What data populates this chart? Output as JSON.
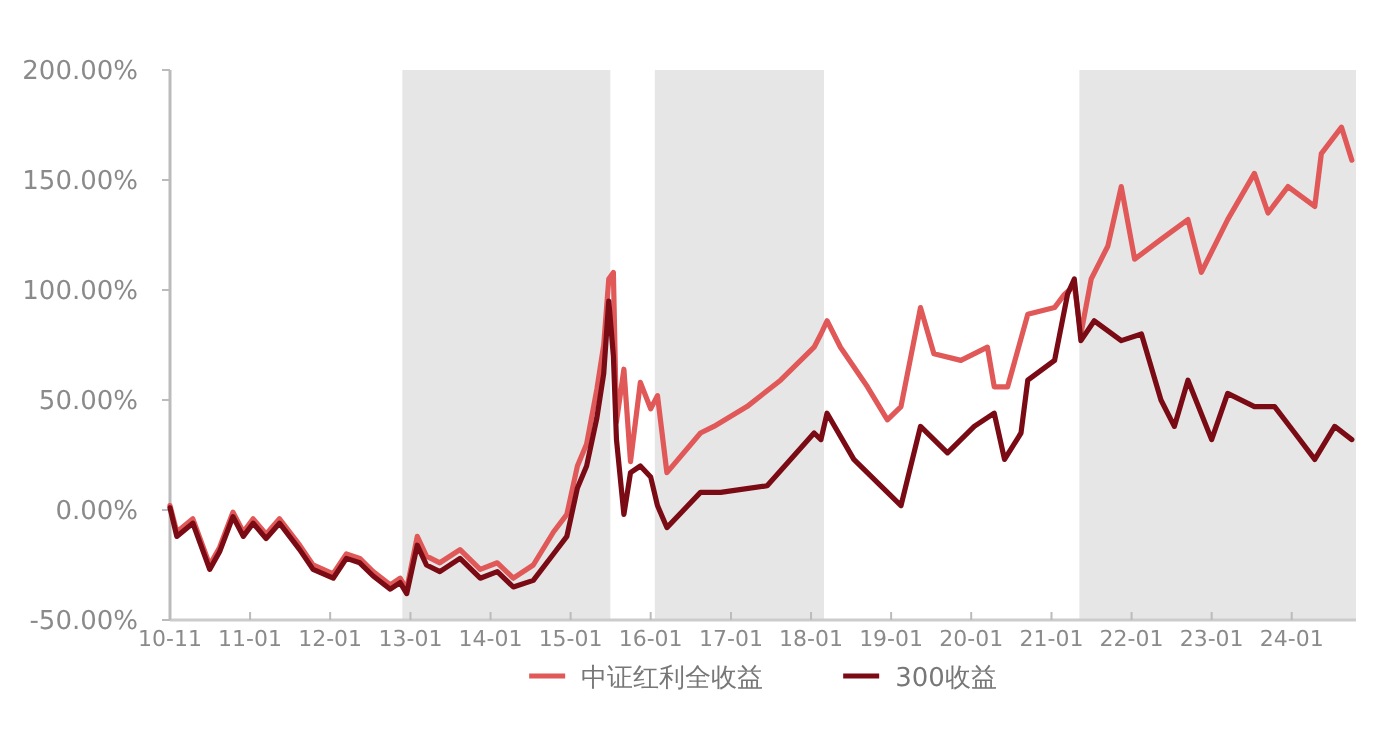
{
  "chart_data": {
    "type": "line",
    "legend": "bottom",
    "grid": false,
    "marker": "none",
    "line_style": "solid",
    "xlim": [
      "2010-01-01",
      "2024-10-20"
    ],
    "ylim": [
      -50,
      200
    ],
    "xticks": [
      {
        "value": "2010-01-01",
        "label": "10-11"
      },
      {
        "value": "2011-01-01",
        "label": "11-01"
      },
      {
        "value": "2012-01-01",
        "label": "12-01"
      },
      {
        "value": "2013-01-01",
        "label": "13-01"
      },
      {
        "value": "2014-01-01",
        "label": "14-01"
      },
      {
        "value": "2015-01-01",
        "label": "15-01"
      },
      {
        "value": "2016-01-01",
        "label": "16-01"
      },
      {
        "value": "2017-01-01",
        "label": "17-01"
      },
      {
        "value": "2018-01-01",
        "label": "18-01"
      },
      {
        "value": "2019-01-01",
        "label": "19-01"
      },
      {
        "value": "2020-01-01",
        "label": "20-01"
      },
      {
        "value": "2021-01-01",
        "label": "21-01"
      },
      {
        "value": "2022-01-01",
        "label": "22-01"
      },
      {
        "value": "2023-01-01",
        "label": "23-01"
      },
      {
        "value": "2024-01-01",
        "label": "24-01"
      }
    ],
    "yticks": [
      {
        "value": -50,
        "label": "-50.00%"
      },
      {
        "value": 0,
        "label": "0.00%"
      },
      {
        "value": 50,
        "label": "50.00%"
      },
      {
        "value": 100,
        "label": "100.00%"
      },
      {
        "value": 150,
        "label": "150.00%"
      },
      {
        "value": 200,
        "label": "200.00%"
      }
    ],
    "bands": [
      {
        "axis": "x",
        "from": "2012-11-25",
        "to": "2015-07-01",
        "color": "#e6e6e6"
      },
      {
        "axis": "x",
        "from": "2016-01-20",
        "to": "2018-03-01",
        "color": "#e6e6e6"
      },
      {
        "axis": "x",
        "from": "2021-05-08",
        "to": "2024-10-20",
        "color": "#e6e6e6"
      }
    ],
    "series": [
      {
        "name": "中证红利全收益",
        "color": "#e05858",
        "x": [
          "2010-01-01",
          "2010-02-01",
          "2010-04-15",
          "2010-07-01",
          "2010-08-15",
          "2010-10-15",
          "2010-12-01",
          "2011-01-15",
          "2011-03-15",
          "2011-05-15",
          "2011-08-15",
          "2011-10-15",
          "2012-01-15",
          "2012-03-15",
          "2012-05-15",
          "2012-07-15",
          "2012-10-01",
          "2012-11-15",
          "2012-12-15",
          "2013-02-01",
          "2013-03-15",
          "2013-05-15",
          "2013-08-15",
          "2013-11-15",
          "2014-02-01",
          "2014-04-15",
          "2014-07-15",
          "2014-10-15",
          "2014-12-15",
          "2015-02-01",
          "2015-03-15",
          "2015-05-01",
          "2015-06-01",
          "2015-06-24",
          "2015-07-15",
          "2015-07-29",
          "2015-09-01",
          "2015-10-01",
          "2015-11-15",
          "2016-01-01",
          "2016-02-01",
          "2016-03-15",
          "2016-08-15",
          "2016-10-15",
          "2017-03-15",
          "2017-08-15",
          "2018-01-15",
          "2018-02-15",
          "2018-03-15",
          "2018-05-15",
          "2018-09-15",
          "2018-12-15",
          "2019-02-15",
          "2019-05-15",
          "2019-07-15",
          "2019-11-15",
          "2020-03-15",
          "2020-04-15",
          "2020-06-15",
          "2020-09-15",
          "2021-01-15",
          "2021-03-01",
          "2021-04-15",
          "2021-05-15",
          "2021-07-01",
          "2021-09-15",
          "2021-11-15",
          "2022-01-15",
          "2022-05-15",
          "2022-09-15",
          "2022-11-15",
          "2023-03-15",
          "2023-07-15",
          "2023-09-15",
          "2023-12-15",
          "2024-04-15",
          "2024-05-15",
          "2024-08-15",
          "2024-10-01"
        ],
        "values": [
          2,
          -10,
          -4,
          -25,
          -17,
          -1,
          -10,
          -4,
          -11,
          -4,
          -16,
          -25,
          -29,
          -20,
          -22,
          -28,
          -34,
          -31,
          -36,
          -12,
          -21,
          -24,
          -18,
          -27,
          -24,
          -31,
          -25,
          -10,
          -2,
          20,
          30,
          55,
          75,
          105,
          108,
          40,
          64,
          22,
          58,
          46,
          52,
          17,
          35,
          38,
          47,
          59,
          74,
          80,
          86,
          74,
          56,
          41,
          47,
          92,
          71,
          68,
          74,
          56,
          56,
          89,
          92,
          98,
          102,
          80,
          105,
          120,
          147,
          114,
          123,
          132,
          108,
          132,
          153,
          135,
          147,
          138,
          162,
          174,
          159
        ]
      },
      {
        "name": "300收益",
        "color": "#7a0a14",
        "x": [
          "2010-01-01",
          "2010-02-01",
          "2010-04-15",
          "2010-07-01",
          "2010-08-15",
          "2010-10-15",
          "2010-12-01",
          "2011-01-15",
          "2011-03-15",
          "2011-05-15",
          "2011-08-15",
          "2011-10-15",
          "2012-01-15",
          "2012-03-15",
          "2012-05-15",
          "2012-07-15",
          "2012-10-01",
          "2012-11-15",
          "2012-12-15",
          "2013-02-01",
          "2013-03-15",
          "2013-05-15",
          "2013-08-15",
          "2013-11-15",
          "2014-02-01",
          "2014-04-15",
          "2014-07-15",
          "2014-10-15",
          "2014-12-15",
          "2015-02-01",
          "2015-03-15",
          "2015-05-01",
          "2015-06-01",
          "2015-06-24",
          "2015-07-15",
          "2015-07-29",
          "2015-09-01",
          "2015-10-01",
          "2015-11-15",
          "2016-01-01",
          "2016-02-01",
          "2016-03-15",
          "2016-08-15",
          "2016-11-15",
          "2017-06-15",
          "2018-01-15",
          "2018-02-15",
          "2018-03-15",
          "2018-07-15",
          "2018-11-15",
          "2019-02-15",
          "2019-05-15",
          "2019-09-15",
          "2020-01-15",
          "2020-04-15",
          "2020-06-01",
          "2020-08-15",
          "2020-09-15",
          "2021-01-15",
          "2021-03-15",
          "2021-04-15",
          "2021-05-15",
          "2021-07-15",
          "2021-11-15",
          "2022-02-15",
          "2022-05-15",
          "2022-07-15",
          "2022-09-15",
          "2023-01-01",
          "2023-03-15",
          "2023-07-15",
          "2023-10-15",
          "2024-01-15",
          "2024-04-15",
          "2024-07-15",
          "2024-10-01"
        ],
        "values": [
          1,
          -12,
          -6,
          -27,
          -19,
          -3,
          -12,
          -6,
          -13,
          -6,
          -18,
          -27,
          -31,
          -22,
          -24,
          -30,
          -36,
          -33,
          -38,
          -16,
          -25,
          -28,
          -22,
          -31,
          -28,
          -35,
          -32,
          -20,
          -12,
          10,
          20,
          42,
          62,
          95,
          70,
          32,
          -2,
          17,
          20,
          15,
          2,
          -8,
          8,
          8,
          11,
          35,
          32,
          44,
          23,
          11,
          2,
          38,
          26,
          38,
          44,
          23,
          35,
          59,
          68,
          98,
          105,
          77,
          86,
          77,
          80,
          50,
          38,
          59,
          32,
          53,
          47,
          47,
          35,
          23,
          38,
          32
        ]
      }
    ]
  }
}
